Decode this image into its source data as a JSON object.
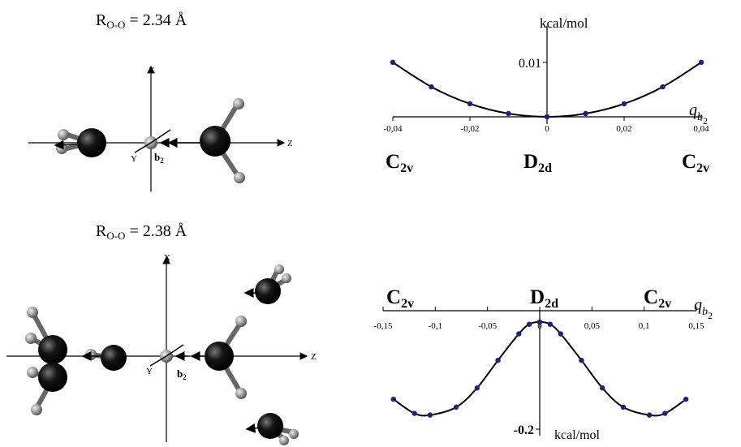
{
  "top": {
    "r_label": {
      "prefix": "R",
      "sub": "O-O",
      "value": " = 2.34 Å"
    },
    "molecule": {
      "axis_x": "X",
      "axis_y": "Y",
      "axis_z": "Z",
      "mode": "b",
      "mode_sub": "2"
    },
    "symmetry": {
      "left": "C",
      "left_sub": "2v",
      "center": "D",
      "center_sub": "2d",
      "right": "C",
      "right_sub": "2v"
    }
  },
  "bottom": {
    "r_label": {
      "prefix": "R",
      "sub": "O-O",
      "value": " = 2.38 Å"
    },
    "molecule": {
      "axis_x": "X",
      "axis_y": "Y",
      "axis_z": "Z",
      "mode": "b",
      "mode_sub": "2"
    },
    "symmetry": {
      "left": "C",
      "left_sub": "2v",
      "center": "D",
      "center_sub": "2d",
      "right": "C",
      "right_sub": "2v"
    }
  },
  "colors": {
    "point": "#1a237e",
    "curve": "#000000",
    "atom_o": "#0a0a0a",
    "atom_h": "#9a9a9a"
  },
  "chart_data": [
    {
      "type": "line",
      "title": "",
      "ylabel": "kcal/mol",
      "xlabel_symbol": "q",
      "xlabel_sub": "b",
      "xlabel_subsub": "2",
      "xlim": [
        -0.04,
        0.04
      ],
      "ylim": [
        0,
        0.014
      ],
      "xticks": [
        -0.04,
        -0.02,
        0,
        0.02,
        0.04
      ],
      "xtick_labels": [
        "-0,04",
        "-0,02",
        "0",
        "0,02",
        "0,04"
      ],
      "yticks": [
        0.01
      ],
      "ytick_labels": [
        "0.01"
      ],
      "grid": false,
      "series": [
        {
          "x": [
            -0.04,
            -0.03,
            -0.02,
            -0.01,
            0,
            0.01,
            0.02,
            0.03,
            0.04
          ],
          "y": [
            0.01,
            0.0055,
            0.0024,
            0.0006,
            0,
            0.0006,
            0.0024,
            0.0055,
            0.01
          ]
        }
      ]
    },
    {
      "type": "line",
      "title": "",
      "ylabel": "kcal/mol",
      "xlabel_symbol": "q",
      "xlabel_sub": "b",
      "xlabel_subsub": "2",
      "xlim": [
        -0.15,
        0.15
      ],
      "ylim": [
        -0.2,
        0.01
      ],
      "xticks": [
        -0.15,
        -0.1,
        -0.05,
        0,
        0.05,
        0.1,
        0.15
      ],
      "xtick_labels": [
        "-0,15",
        "-0,1",
        "-0,05",
        "0",
        "0,05",
        "0,1",
        "0,15"
      ],
      "yticks": [
        -0.2
      ],
      "ytick_labels": [
        "-0.2"
      ],
      "grid": false,
      "series": [
        {
          "x": [
            -0.14,
            -0.12,
            -0.105,
            -0.08,
            -0.06,
            -0.04,
            -0.02,
            -0.01,
            0,
            0.01,
            0.02,
            0.04,
            0.06,
            0.08,
            0.105,
            0.12,
            0.14
          ],
          "y": [
            -0.147,
            -0.172,
            -0.175,
            -0.161,
            -0.127,
            -0.078,
            -0.031,
            -0.014,
            -0.01,
            -0.014,
            -0.031,
            -0.078,
            -0.127,
            -0.161,
            -0.175,
            -0.172,
            -0.147
          ]
        }
      ]
    }
  ]
}
